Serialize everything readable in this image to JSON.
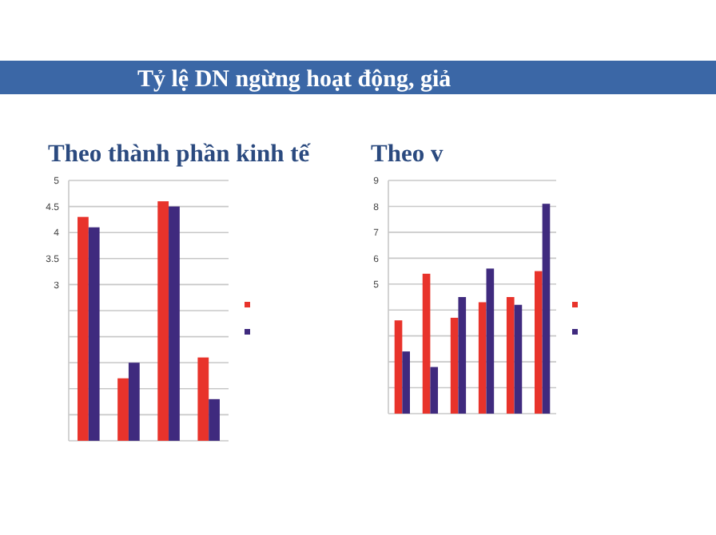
{
  "chart_data": [
    {
      "type": "bar",
      "title": "Tỷ lệ DN ngừng hoạt động, giả",
      "subtitle": "Theo thành phần kinh tế",
      "categories": [
        null,
        null,
        null,
        null
      ],
      "series": [
        {
          "color": "#e8332b",
          "values": [
            4.3,
            1.2,
            4.6,
            1.6
          ]
        },
        {
          "color": "#3f2a7e",
          "values": [
            4.1,
            1.5,
            4.5,
            0.8
          ]
        }
      ],
      "ylim": [
        0,
        5
      ],
      "yticks": [
        {
          "value": 0,
          "label": null
        },
        {
          "value": 0.5,
          "label": null
        },
        {
          "value": 1,
          "label": null
        },
        {
          "value": 1.5,
          "label": null
        },
        {
          "value": 2,
          "label": null
        },
        {
          "value": 2.5,
          "label": null
        },
        3,
        3.5,
        4,
        4.5,
        5
      ],
      "grid": "y"
    },
    {
      "type": "bar",
      "subtitle": "Theo v",
      "categories": [
        null,
        null,
        null,
        null,
        null,
        null
      ],
      "series": [
        {
          "color": "#e8332b",
          "values": [
            3.6,
            5.4,
            3.7,
            4.3,
            4.5,
            5.5
          ]
        },
        {
          "color": "#3f2a7e",
          "values": [
            2.4,
            1.8,
            4.5,
            5.6,
            4.2,
            8.1
          ]
        }
      ],
      "ylim": [
        0,
        9
      ],
      "yticks": [
        {
          "value": 0,
          "label": null
        },
        {
          "value": 1,
          "label": null
        },
        {
          "value": 2,
          "label": null
        },
        {
          "value": 3,
          "label": null
        },
        {
          "value": 4,
          "label": null
        },
        5,
        6,
        7,
        8,
        9
      ],
      "grid": "y"
    }
  ]
}
